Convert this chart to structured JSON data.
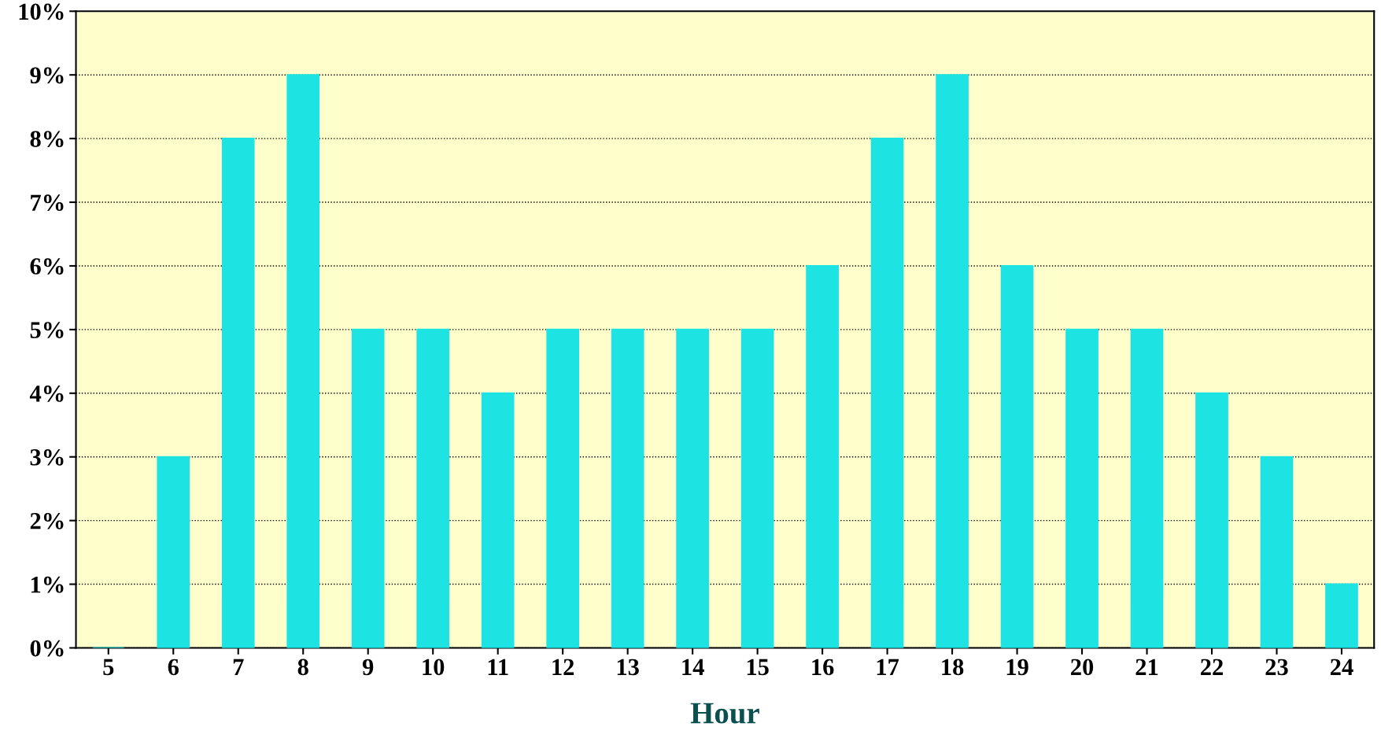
{
  "chart_data": {
    "type": "bar",
    "xlabel": "Hour",
    "categories": [
      "5",
      "6",
      "7",
      "8",
      "9",
      "10",
      "11",
      "12",
      "13",
      "14",
      "15",
      "16",
      "17",
      "18",
      "19",
      "20",
      "21",
      "22",
      "23",
      "24"
    ],
    "values": [
      0,
      3,
      8,
      9,
      5,
      5,
      4,
      5,
      5,
      5,
      5,
      6,
      8,
      9,
      6,
      5,
      5,
      4,
      3,
      1
    ],
    "color": "#1de3e3",
    "ylim": [
      0,
      10
    ],
    "yticks": [
      {
        "value": 0,
        "label": "0%"
      },
      {
        "value": 1,
        "label": "1%"
      },
      {
        "value": 2,
        "label": "2%"
      },
      {
        "value": 3,
        "label": "3%"
      },
      {
        "value": 4,
        "label": "4%"
      },
      {
        "value": 5,
        "label": "5%"
      },
      {
        "value": 6,
        "label": "6%"
      },
      {
        "value": 7,
        "label": "7%"
      },
      {
        "value": 8,
        "label": "8%"
      },
      {
        "value": 9,
        "label": "9%"
      },
      {
        "value": 10,
        "label": "10%"
      }
    ],
    "grid": "y",
    "line_style": "dotted"
  }
}
